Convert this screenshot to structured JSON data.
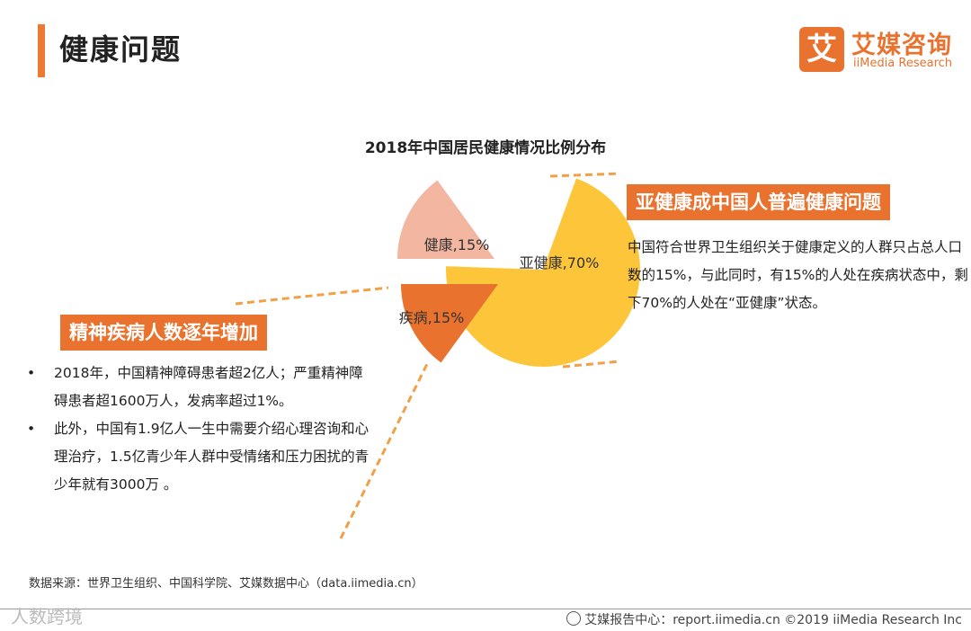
{
  "header": {
    "title": "健康问题",
    "logo_mark": "艾",
    "logo_cn": "艾媒咨询",
    "logo_en": "iiMedia Research"
  },
  "chart_data": {
    "type": "pie",
    "title": "2018年中国居民健康情况比例分布",
    "slices": [
      {
        "name": "亚健康",
        "value": 70,
        "label": "亚健康,70%",
        "color": "#fdc63a"
      },
      {
        "name": "健康",
        "value": 15,
        "label": "健康,15%",
        "color": "#f3b6a1"
      },
      {
        "name": "疾病",
        "value": 15,
        "label": "疾病,15%",
        "color": "#e8722e"
      }
    ],
    "exploded": true,
    "leader_line_color": "#f0a046"
  },
  "right_panel": {
    "heading": "亚健康成中国人普遍健康问题",
    "text": "中国符合世界卫生组织关于健康定义的人群只占总人口数的15%，与此同时，有15%的人处在疾病状态中，剩下70%的人处在“亚健康”状态。"
  },
  "left_panel": {
    "heading": "精神疾病人数逐年增加",
    "bullets": [
      "2018年，中国精神障碍患者超2亿人；严重精神障碍患者超1600万人，发病率超过1%。",
      "此外，中国有1.9亿人一生中需要介绍心理咨询和心理治疗，1.5亿青少年人群中受情绪和压力困扰的青少年就有3000万 。"
    ]
  },
  "footer": {
    "source": "数据来源：世界卫生组织、中国科学院、艾媒数据中心（data.iimedia.cn）",
    "watermark": "人数跨境",
    "right_text": "艾媒报告中心：report.iimedia.cn   ©2019  iiMedia Research  Inc"
  }
}
